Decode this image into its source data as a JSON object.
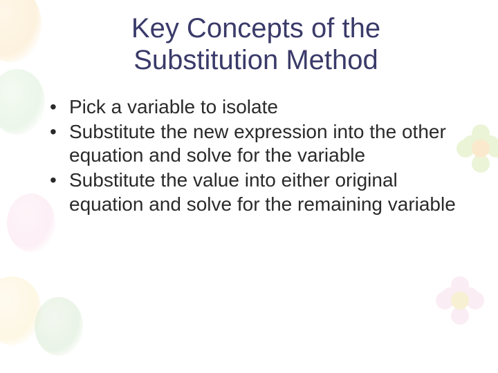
{
  "slide": {
    "title": "Key Concepts of the Substitution Method",
    "bullets": [
      "Pick a variable to isolate",
      "Substitute the new expression into the other equation and solve for the variable",
      "Substitute the value into either original equation and solve for the remaining variable"
    ],
    "styling": {
      "title_color": "#3a3a6a",
      "title_fontsize": 40,
      "body_color": "#2a2a2a",
      "body_fontsize": 28,
      "background_color": "#ffffff",
      "decoration_palette": [
        "#fdf0d8",
        "#e8f5e5",
        "#fdeaf2",
        "#d4e8a8",
        "#f8d8e8"
      ],
      "font_family": "Verdana"
    }
  }
}
